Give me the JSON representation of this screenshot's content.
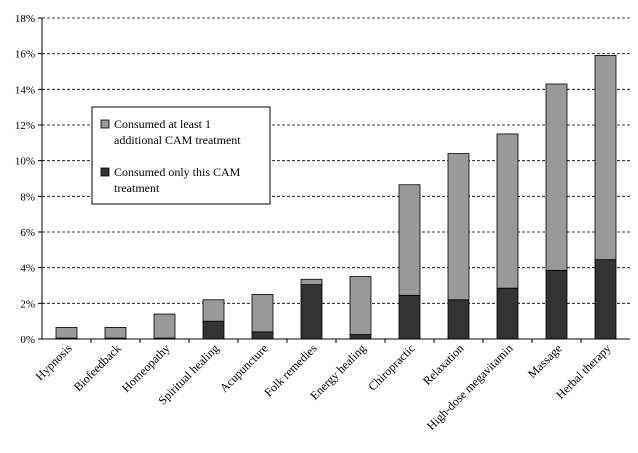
{
  "chart_data": {
    "type": "bar",
    "stacked": true,
    "title": "",
    "xlabel": "",
    "ylabel": "",
    "ylim": [
      0,
      18
    ],
    "y_ticks": [
      "0%",
      "2%",
      "4%",
      "6%",
      "8%",
      "10%",
      "12%",
      "14%",
      "16%",
      "18%"
    ],
    "y_unit": "%",
    "grid": "horizontal dashed",
    "legend_position": "left-middle",
    "categories": [
      "Hypnosis",
      "Biofeedback",
      "Homeopathy",
      "Spiritual healing",
      "Acupuncture",
      "Folk remedies",
      "Energy healing",
      "Chiropractic",
      "Relaxation",
      "High-dose megavitamin",
      "Massage",
      "Herbal therapy"
    ],
    "series": [
      {
        "name": "Consumed only this CAM treatment",
        "color": "#333333",
        "values": [
          0.05,
          0.05,
          0.05,
          1.0,
          0.4,
          3.05,
          0.25,
          2.45,
          2.2,
          2.85,
          3.85,
          4.45
        ]
      },
      {
        "name": "Consumed at least 1 additional CAM treatment",
        "color": "#999999",
        "values": [
          0.6,
          0.6,
          1.35,
          1.2,
          2.1,
          0.3,
          3.25,
          6.2,
          8.2,
          8.65,
          10.45,
          11.45
        ]
      }
    ],
    "legend": [
      {
        "label_lines": [
          "Consumed at least 1",
          "additional CAM treatment"
        ],
        "color": "#999999"
      },
      {
        "label_lines": [
          "Consumed only this CAM",
          "treatment"
        ],
        "color": "#333333"
      }
    ]
  }
}
